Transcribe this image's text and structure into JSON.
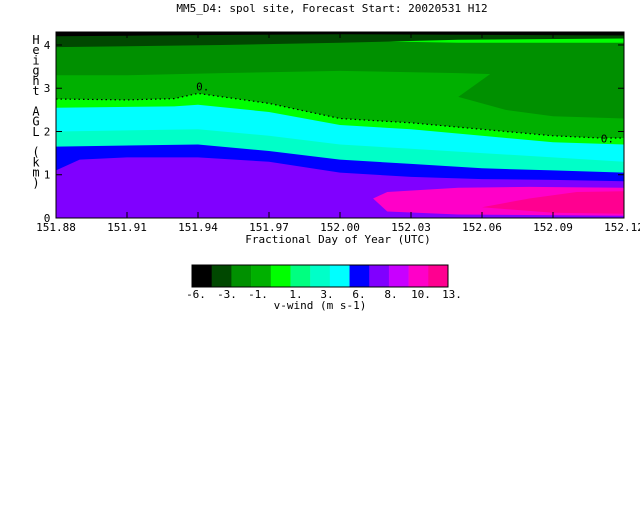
{
  "chart_data": {
    "type": "heatmap",
    "title": "MM5_D4: spol site,  Forecast Start: 20020531 H12",
    "xlabel": "Fractional Day of Year (UTC)",
    "ylabel": "Height AGL (km)",
    "xlim": [
      151.88,
      152.12
    ],
    "ylim": [
      0,
      4.3
    ],
    "x_ticks": [
      {
        "value": 151.88,
        "label": "151.88"
      },
      {
        "value": 151.91,
        "label": "151.91"
      },
      {
        "value": 151.94,
        "label": "151.94"
      },
      {
        "value": 151.97,
        "label": "151.97"
      },
      {
        "value": 152.0,
        "label": "152.00"
      },
      {
        "value": 152.03,
        "label": "152.03"
      },
      {
        "value": 152.06,
        "label": "152.06"
      },
      {
        "value": 152.09,
        "label": "152.09"
      },
      {
        "value": 152.12,
        "label": "152.12"
      }
    ],
    "y_ticks": [
      {
        "value": 0,
        "label": "0"
      },
      {
        "value": 1,
        "label": "1"
      },
      {
        "value": 2,
        "label": "2"
      },
      {
        "value": 3,
        "label": "3"
      },
      {
        "value": 4,
        "label": "4"
      }
    ],
    "colorbar": {
      "label": "v-wind (m s-1)",
      "colors": [
        "#000000",
        "#004800",
        "#009000",
        "#00b000",
        "#00ff00",
        "#00ff80",
        "#00ffc8",
        "#00ffff",
        "#0000ff",
        "#8000ff",
        "#c800ff",
        "#ff00c8",
        "#ff0090"
      ],
      "tick_labels": [
        "-6.",
        "-3.",
        "-1.",
        "1.",
        "3.",
        "6.",
        "8.",
        "10.",
        "13."
      ]
    },
    "contour_zero": {
      "label": "0.",
      "points": [
        {
          "x": 151.88,
          "y": 2.75
        },
        {
          "x": 151.91,
          "y": 2.73
        },
        {
          "x": 151.93,
          "y": 2.76
        },
        {
          "x": 151.94,
          "y": 2.88
        },
        {
          "x": 151.97,
          "y": 2.65
        },
        {
          "x": 152.0,
          "y": 2.3
        },
        {
          "x": 152.03,
          "y": 2.2
        },
        {
          "x": 152.06,
          "y": 2.05
        },
        {
          "x": 152.09,
          "y": 1.9
        },
        {
          "x": 152.11,
          "y": 1.85
        },
        {
          "x": 152.12,
          "y": 1.85
        }
      ]
    },
    "regions": [
      {
        "color_index": 7,
        "points": [
          [
            151.88,
            2.55
          ],
          [
            151.93,
            2.58
          ],
          [
            151.94,
            2.62
          ],
          [
            151.97,
            2.45
          ],
          [
            152.0,
            2.15
          ],
          [
            152.03,
            2.05
          ],
          [
            152.06,
            1.9
          ],
          [
            152.09,
            1.75
          ],
          [
            152.12,
            1.7
          ],
          [
            152.12,
            0
          ],
          [
            151.88,
            0
          ]
        ]
      },
      {
        "color_index": 6,
        "points": [
          [
            151.88,
            2.0
          ],
          [
            151.94,
            2.05
          ],
          [
            151.97,
            1.9
          ],
          [
            152.0,
            1.7
          ],
          [
            152.03,
            1.6
          ],
          [
            152.06,
            1.5
          ],
          [
            152.09,
            1.4
          ],
          [
            152.12,
            1.3
          ],
          [
            152.12,
            0
          ],
          [
            151.88,
            0
          ]
        ]
      },
      {
        "color_index": 8,
        "points": [
          [
            151.88,
            1.65
          ],
          [
            151.94,
            1.7
          ],
          [
            151.97,
            1.55
          ],
          [
            152.0,
            1.35
          ],
          [
            152.03,
            1.25
          ],
          [
            152.06,
            1.15
          ],
          [
            152.09,
            1.1
          ],
          [
            152.12,
            1.05
          ],
          [
            152.12,
            0
          ],
          [
            151.88,
            0
          ]
        ]
      },
      {
        "color_index": 9,
        "points": [
          [
            151.88,
            1.1
          ],
          [
            151.89,
            1.35
          ],
          [
            151.91,
            1.4
          ],
          [
            151.94,
            1.4
          ],
          [
            151.97,
            1.3
          ],
          [
            152.0,
            1.05
          ],
          [
            152.03,
            0.95
          ],
          [
            152.06,
            0.9
          ],
          [
            152.09,
            0.88
          ],
          [
            152.12,
            0.85
          ],
          [
            152.12,
            0
          ],
          [
            151.88,
            0
          ]
        ]
      },
      {
        "color_index": 11,
        "points": [
          [
            152.014,
            0.45
          ],
          [
            152.02,
            0.6
          ],
          [
            152.05,
            0.7
          ],
          [
            152.08,
            0.72
          ],
          [
            152.12,
            0.7
          ],
          [
            152.12,
            0.05
          ],
          [
            152.05,
            0.08
          ],
          [
            152.02,
            0.15
          ]
        ]
      },
      {
        "color_index": 12,
        "points": [
          [
            152.06,
            0.25
          ],
          [
            152.08,
            0.45
          ],
          [
            152.1,
            0.6
          ],
          [
            152.12,
            0.62
          ],
          [
            152.12,
            0.1
          ],
          [
            152.09,
            0.12
          ]
        ]
      },
      {
        "color_index": 3,
        "points": [
          [
            151.88,
            3.6
          ],
          [
            151.95,
            3.6
          ],
          [
            152.0,
            3.65
          ],
          [
            152.05,
            3.65
          ],
          [
            152.12,
            3.6
          ],
          [
            152.12,
            1.85
          ],
          [
            152.11,
            1.85
          ],
          [
            152.09,
            1.9
          ],
          [
            152.06,
            2.05
          ],
          [
            152.03,
            2.2
          ],
          [
            152.0,
            2.3
          ],
          [
            151.97,
            2.65
          ],
          [
            151.94,
            2.88
          ],
          [
            151.93,
            2.76
          ],
          [
            151.91,
            2.73
          ],
          [
            151.88,
            2.75
          ]
        ]
      },
      {
        "color_index": 2,
        "points": [
          [
            151.88,
            4.0
          ],
          [
            151.95,
            4.05
          ],
          [
            152.0,
            4.1
          ],
          [
            152.05,
            4.05
          ],
          [
            152.12,
            4.05
          ],
          [
            152.12,
            3.2
          ],
          [
            152.08,
            3.3
          ],
          [
            152.05,
            3.35
          ],
          [
            152.0,
            3.4
          ],
          [
            151.95,
            3.35
          ],
          [
            151.91,
            3.3
          ],
          [
            151.88,
            3.3
          ]
        ]
      },
      {
        "color_index": 2,
        "points": [
          [
            152.05,
            2.8
          ],
          [
            152.064,
            3.35
          ],
          [
            152.12,
            3.35
          ],
          [
            152.12,
            2.3
          ],
          [
            152.09,
            2.35
          ],
          [
            152.07,
            2.5
          ]
        ]
      },
      {
        "color_index": 1,
        "points": [
          [
            151.88,
            4.3
          ],
          [
            152.12,
            4.3
          ],
          [
            152.12,
            4.15
          ],
          [
            152.05,
            4.12
          ],
          [
            152.0,
            4.05
          ],
          [
            151.95,
            4.0
          ],
          [
            151.88,
            3.95
          ]
        ]
      },
      {
        "color_index": 1,
        "points": [
          [
            151.88,
            4.3
          ],
          [
            151.92,
            4.3
          ],
          [
            151.95,
            4.18
          ],
          [
            151.91,
            4.12
          ],
          [
            151.88,
            4.12
          ]
        ]
      },
      {
        "color_index": 0,
        "points": [
          [
            151.88,
            4.3
          ],
          [
            152.12,
            4.3
          ],
          [
            152.12,
            4.22
          ],
          [
            152.0,
            4.25
          ],
          [
            151.92,
            4.22
          ],
          [
            151.88,
            4.2
          ]
        ]
      }
    ]
  }
}
